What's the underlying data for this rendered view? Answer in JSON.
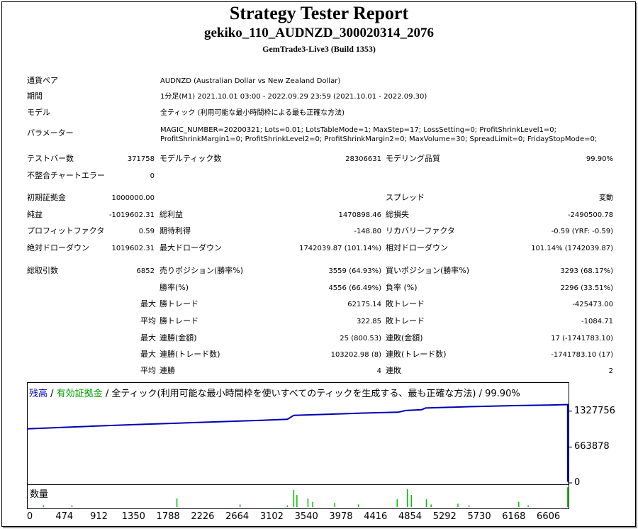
{
  "report": {
    "title": "Strategy Tester Report",
    "subtitle": "gekiko_110_AUDNZD_300020314_2076",
    "server": "GemTrade3-Live3 (Build 1353)"
  },
  "info": {
    "symbol_label": "通貨ペア",
    "symbol_value": "AUDNZD (Australian Dollar vs New Zealand Dollar)",
    "period_label": "期間",
    "period_value": "1分足(M1) 2021.10.01 03:00 - 2022.09.29 23:59 (2021.10.01 - 2022.09.30)",
    "model_label": "モデル",
    "model_value": "全ティック (利用可能な最小時間枠による最も正確な方法)",
    "params_label": "パラメーター",
    "params_line1": "MAGIC_NUMBER=20200321; Lots=0.01; LotsTableMode=1; MaxStep=17; LossSetting=0; ProfitShrinkLevel1=0;",
    "params_line2": "ProfitShrinkMargin1=0; ProfitShrinkLevel2=0; ProfitShrinkMargin2=0; MaxVolume=30; SpreadLimit=0; FridayStopMode=0;"
  },
  "stats": {
    "bars_label": "テストバー数",
    "bars_value": "371758",
    "ticks_label": "モデルティック数",
    "ticks_value": "28306631",
    "quality_label": "モデリング品質",
    "quality_value": "99.90%",
    "mismatch_label": "不整合チャートエラー",
    "mismatch_value": "0",
    "deposit_label": "初期証拠金",
    "deposit_value": "1000000.00",
    "spread_label": "スプレッド",
    "spread_value": "変動",
    "net_label": "純益",
    "net_value": "-1019602.31",
    "gross_profit_label": "総利益",
    "gross_profit_value": "1470898.46",
    "gross_loss_label": "総損失",
    "gross_loss_value": "-2490500.78",
    "pf_label": "プロフィットファクタ",
    "pf_value": "0.59",
    "expected_label": "期待利得",
    "expected_value": "-148.80",
    "recovery_label": "リカバリーファクタ",
    "recovery_value": "-0.59 (YRF: -0.59)",
    "abs_dd_label": "絶対ドローダウン",
    "abs_dd_value": "1019602.31",
    "max_dd_label": "最大ドローダウン",
    "max_dd_value": "1742039.87 (101.14%)",
    "rel_dd_label": "相対ドローダウン",
    "rel_dd_value": "101.14% (1742039.87)",
    "trades_label": "総取引数",
    "trades_value": "6852",
    "short_label": "売りポジション(勝率%)",
    "short_value": "3559 (64.93%)",
    "long_label": "買いポジション(勝率%)",
    "long_value": "3293 (68.17%)",
    "win_label": "勝率(%)",
    "win_value": "4556 (66.49%)",
    "loss_label": "負率 (%)",
    "loss_value": "2296 (33.51%)",
    "max_prefix": "最大",
    "avg_prefix": "平均",
    "largest_win_label": "勝トレード",
    "largest_win_value": "62175.14",
    "largest_loss_label": "敗トレード",
    "largest_loss_value": "-425473.00",
    "avg_win_label": "勝トレード",
    "avg_win_value": "322.85",
    "avg_loss_label": "敗トレード",
    "avg_loss_value": "-1084.71",
    "max_consec_wins_label": "連勝(金額)",
    "max_consec_wins_value": "25 (800.53)",
    "max_consec_losses_label": "連敗(金額)",
    "max_consec_losses_value": "17 (-1741783.10)",
    "max_consec_profit_label": "連勝(トレード数)",
    "max_consec_profit_value": "103202.98 (8)",
    "max_consec_loss_label": "連敗(トレード数)",
    "max_consec_loss_value": "-1741783.10 (17)",
    "avg_consec_wins_label": "連勝",
    "avg_consec_wins_value": "4",
    "avg_consec_losses_label": "連敗",
    "avg_consec_losses_value": "2"
  },
  "chart_caption": {
    "balance": "残高",
    "sep1": " / ",
    "equity": "有効証拠金",
    "rest": " / 全ティック(利用可能な最小時間枠を使いすべてのティックを生成する、最も正確な方法) / 99.90%"
  },
  "colors": {
    "balance": "#0000b4",
    "equity": "#00a000",
    "volume": "#00c000"
  },
  "chart_data": {
    "type": "line",
    "x_ticks": [
      "0",
      "474",
      "912",
      "1350",
      "1788",
      "2226",
      "2664",
      "3102",
      "3540",
      "3978",
      "4416",
      "4854",
      "5292",
      "5730",
      "6168",
      "6606"
    ],
    "y_ticks": [
      "1327756",
      "663878",
      "0"
    ],
    "volume_label": "数量",
    "series": [
      {
        "name": "残高",
        "points": [
          [
            0,
            1000000
          ],
          [
            500,
            1030000
          ],
          [
            1000,
            1060000
          ],
          [
            1500,
            1085000
          ],
          [
            2000,
            1110000
          ],
          [
            2500,
            1135000
          ],
          [
            3000,
            1160000
          ],
          [
            3300,
            1178000
          ],
          [
            3380,
            1250000
          ],
          [
            3800,
            1270000
          ],
          [
            4200,
            1290000
          ],
          [
            4700,
            1308000
          ],
          [
            4800,
            1340000
          ],
          [
            5000,
            1355000
          ],
          [
            5050,
            1385000
          ],
          [
            5600,
            1410000
          ],
          [
            6168,
            1430000
          ],
          [
            6606,
            1440000
          ],
          [
            6850,
            1450000
          ],
          [
            6851,
            20000
          ]
        ]
      }
    ],
    "volume_bars": [
      [
        210,
        2
      ],
      [
        570,
        2
      ],
      [
        1900,
        10
      ],
      [
        2700,
        3
      ],
      [
        3300,
        2
      ],
      [
        3380,
        20
      ],
      [
        3420,
        14
      ],
      [
        3560,
        10
      ],
      [
        3620,
        6
      ],
      [
        3900,
        5
      ],
      [
        4200,
        3
      ],
      [
        4690,
        9
      ],
      [
        4820,
        21
      ],
      [
        4870,
        14
      ],
      [
        5060,
        9
      ],
      [
        5120,
        3
      ],
      [
        5460,
        4
      ],
      [
        5600,
        2
      ],
      [
        6230,
        6
      ],
      [
        6350,
        2
      ],
      [
        6850,
        23
      ]
    ]
  }
}
